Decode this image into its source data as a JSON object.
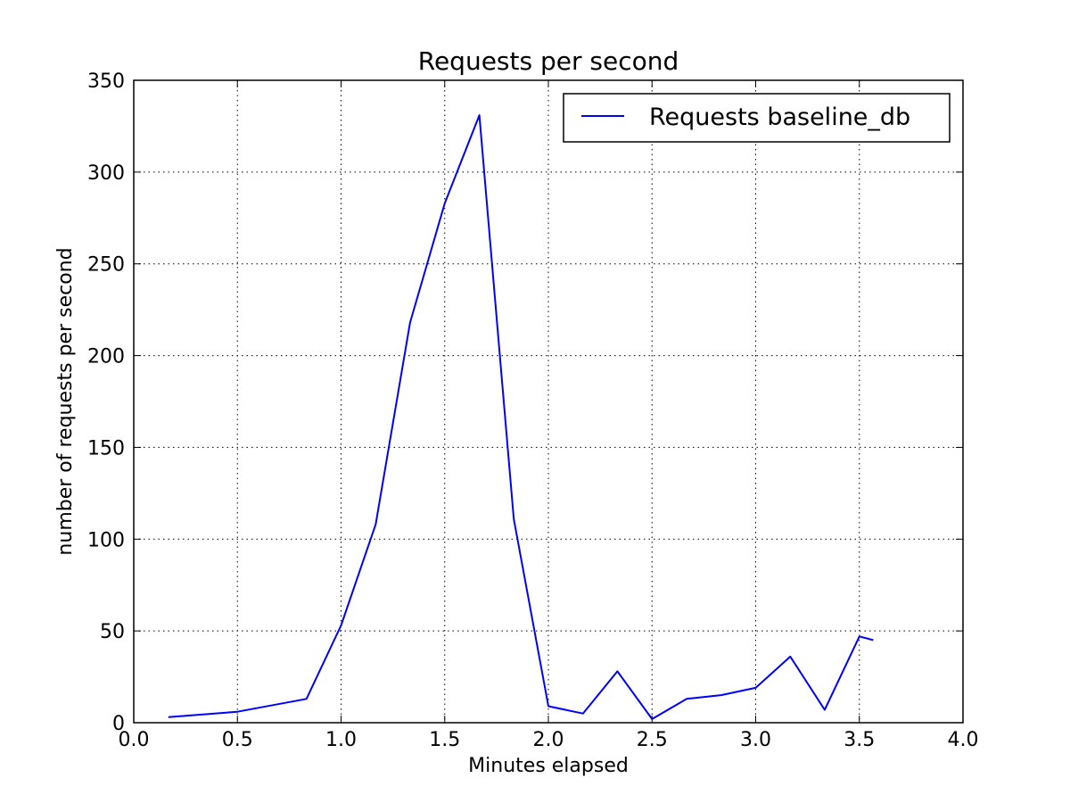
{
  "chart_data": {
    "type": "line",
    "title": "Requests per second",
    "xlabel": "Minutes elapsed",
    "ylabel": "number of requests per second",
    "xlim": [
      0.0,
      4.0
    ],
    "ylim": [
      0,
      350
    ],
    "xticks": [
      "0.0",
      "0.5",
      "1.0",
      "1.5",
      "2.0",
      "2.5",
      "3.0",
      "3.5",
      "4.0"
    ],
    "yticks": [
      "0",
      "50",
      "100",
      "150",
      "200",
      "250",
      "300",
      "350"
    ],
    "grid": true,
    "legend_position": "top-right",
    "series": [
      {
        "name": "Requests baseline_db",
        "color": "#0000ff",
        "x": [
          0.167,
          0.5,
          0.833,
          1.0,
          1.167,
          1.333,
          1.5,
          1.667,
          1.833,
          2.0,
          2.167,
          2.333,
          2.5,
          2.667,
          2.833,
          3.0,
          3.167,
          3.333,
          3.5,
          3.567
        ],
        "y": [
          3,
          6,
          13,
          53,
          108,
          218,
          283,
          331,
          111,
          9,
          5,
          28,
          2,
          13,
          15,
          19,
          36,
          7,
          47,
          45
        ]
      }
    ]
  }
}
